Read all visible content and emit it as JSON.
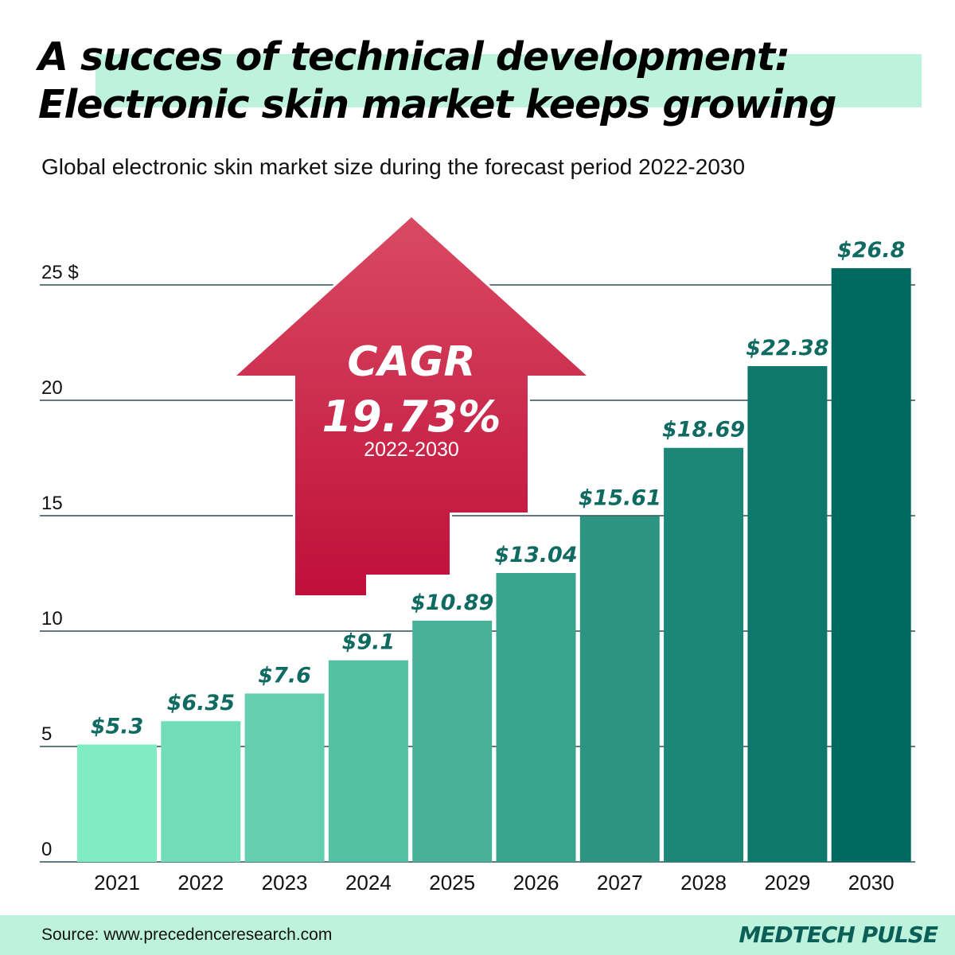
{
  "header": {
    "title_line1": "A succes of technical development:",
    "title_line2": "Electronic skin market keeps growing",
    "subtitle": "Global electronic skin market size during the forecast period 2022-2030"
  },
  "callout": {
    "label": "CAGR",
    "value": "19.73%",
    "period": "2022-2030",
    "color": "#c8173f"
  },
  "chart_data": {
    "type": "bar",
    "title": "",
    "xlabel": "",
    "ylabel": "",
    "categories": [
      "2021",
      "2022",
      "2023",
      "2024",
      "2025",
      "2026",
      "2027",
      "2028",
      "2029",
      "2030"
    ],
    "values": [
      5.3,
      6.35,
      7.6,
      9.1,
      10.89,
      13.04,
      15.61,
      18.69,
      22.38,
      26.8
    ],
    "data_labels": [
      "$5.3",
      "$6.35",
      "$7.6",
      "$9.1",
      "$10.89",
      "$13.04",
      "$15.61",
      "$18.69",
      "$22.38",
      "$26.8"
    ],
    "yticks": [
      0,
      5,
      10,
      15,
      20,
      25
    ],
    "ytick_labels": [
      "0",
      "5",
      "10",
      "15",
      "20",
      "25 $"
    ],
    "ylim": [
      0,
      25
    ],
    "grid": true,
    "bar_color_start": "#80ecc4",
    "bar_color_end": "#006a61",
    "label_color": "#0f6b62"
  },
  "footer": {
    "source": "Source: www.precedenceresearch.com",
    "brand": "MEDTECH PULSE"
  }
}
